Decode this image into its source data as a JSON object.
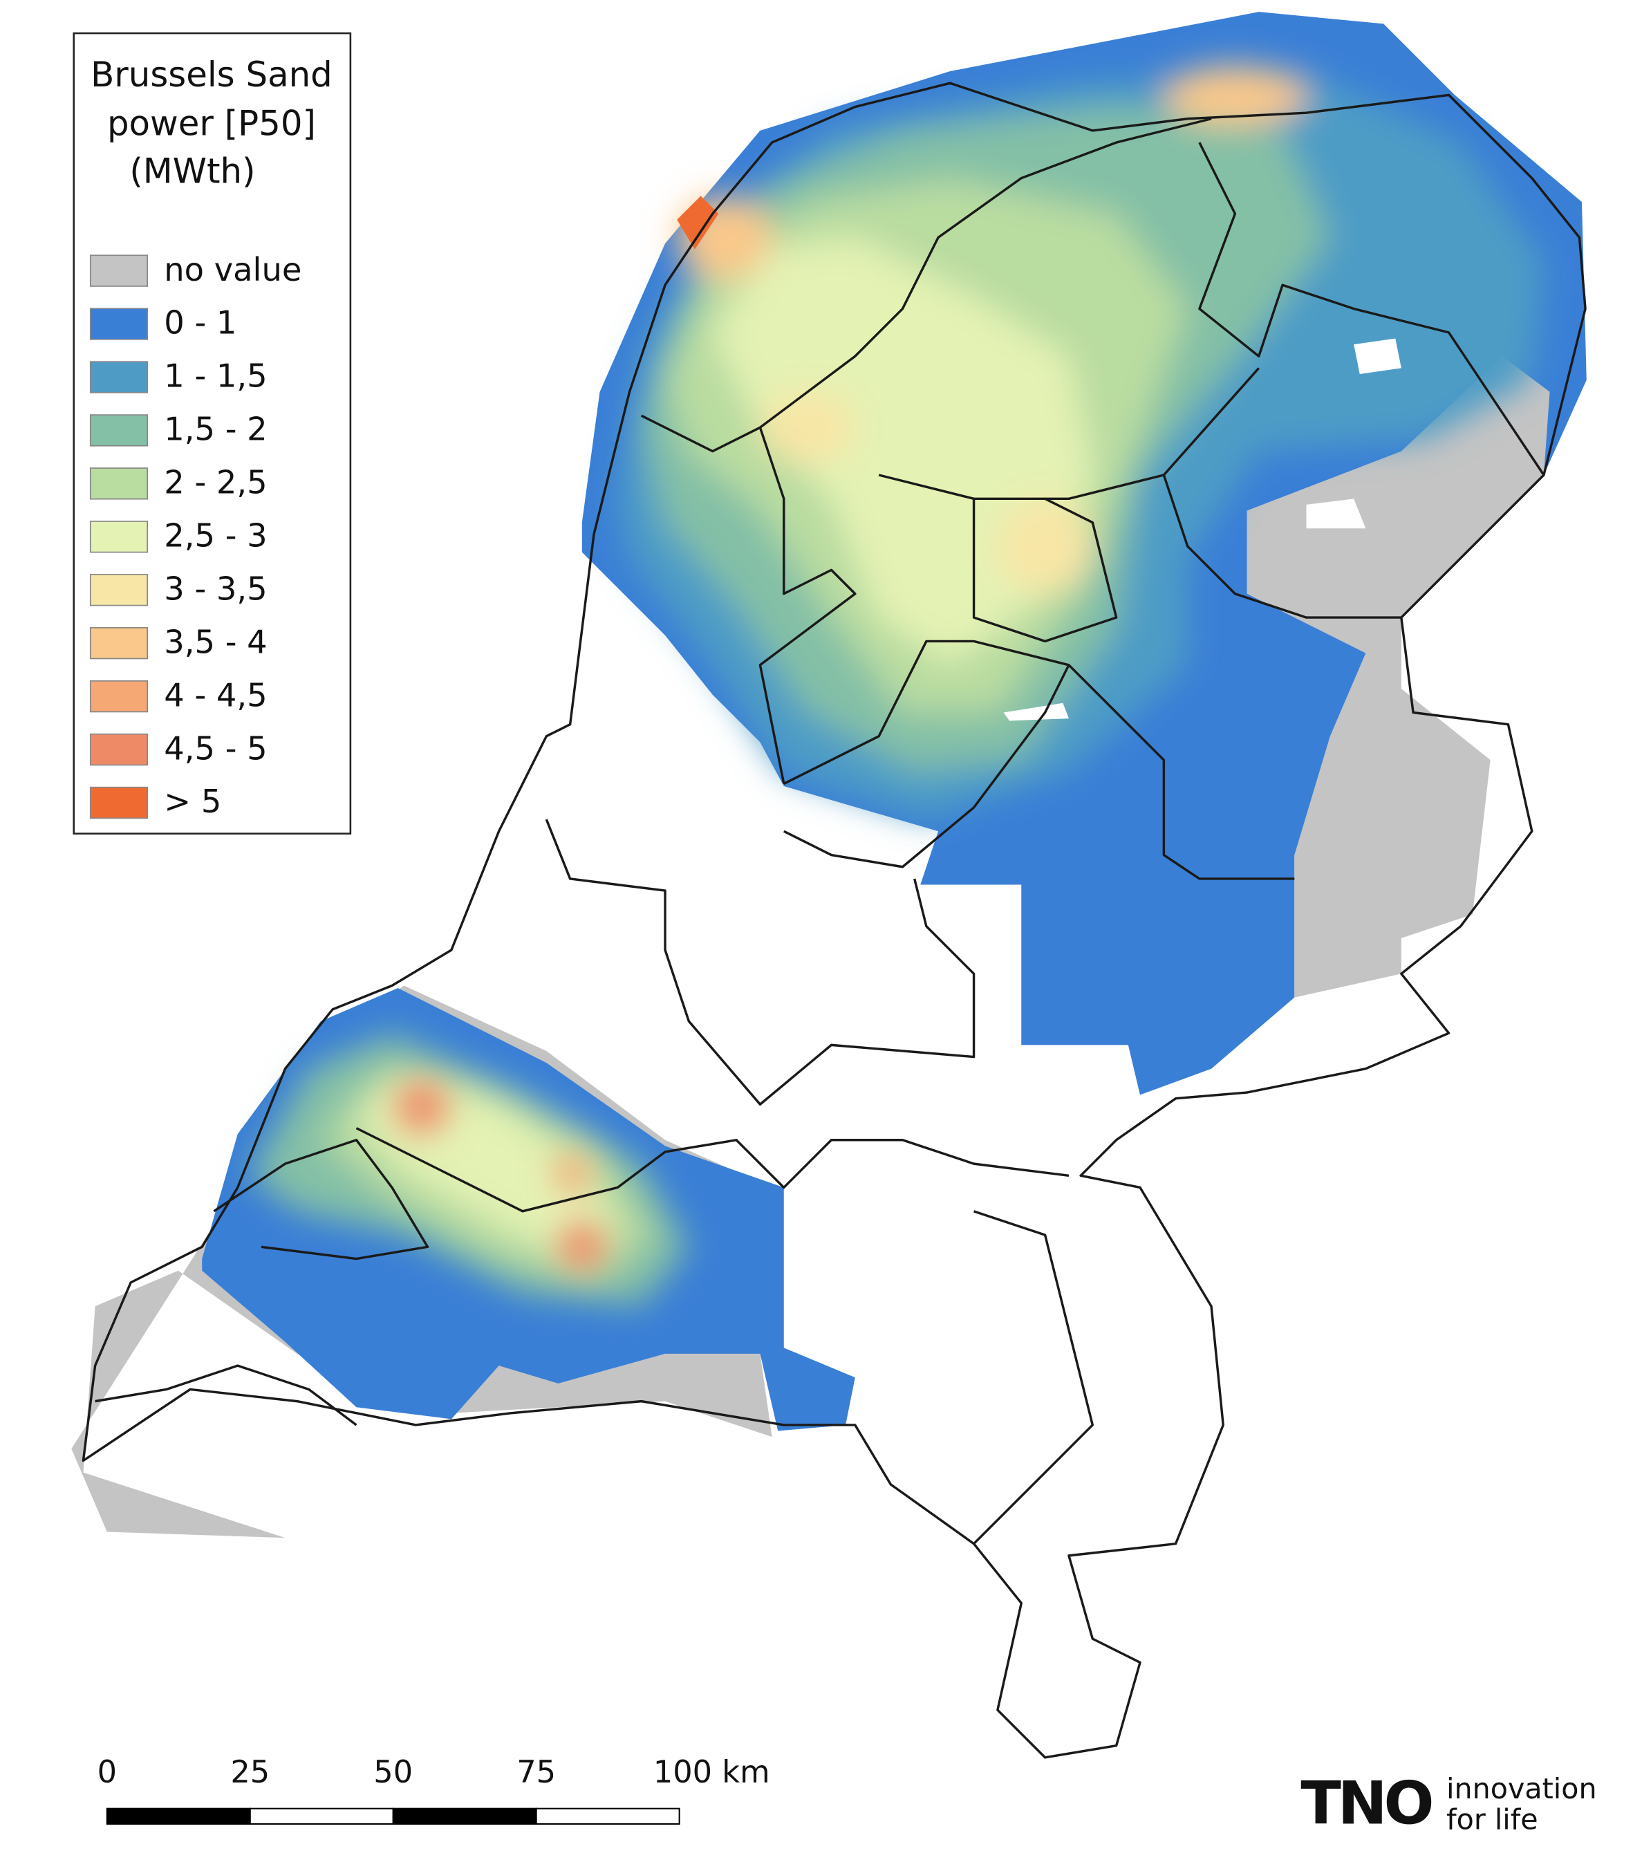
{
  "legend": {
    "title": [
      "Brussels Sand",
      "power [P50]",
      "(MWth)"
    ],
    "items": [
      {
        "label": "no value",
        "color": "#c4c4c4"
      },
      {
        "label": "0 - 1",
        "color": "#3a7fd6"
      },
      {
        "label": "1 - 1,5",
        "color": "#4e9cc6"
      },
      {
        "label": "1,5 - 2",
        "color": "#84c0a6"
      },
      {
        "label": "2 - 2,5",
        "color": "#b9dca0"
      },
      {
        "label": "2,5 - 3",
        "color": "#e4f2b4"
      },
      {
        "label": "3 - 3,5",
        "color": "#f8e6a6"
      },
      {
        "label": "3,5 - 4",
        "color": "#fac88a"
      },
      {
        "label": "4 - 4,5",
        "color": "#f5a874"
      },
      {
        "label": "4,5 - 5",
        "color": "#ef8a66"
      },
      {
        "label": "> 5",
        "color": "#ee6a30"
      }
    ]
  },
  "scale_bar": {
    "ticks": [
      "0",
      "25",
      "50",
      "75",
      "100 km"
    ]
  },
  "logo": {
    "mark": "TNO",
    "tagline": [
      "innovation",
      "for life"
    ]
  }
}
